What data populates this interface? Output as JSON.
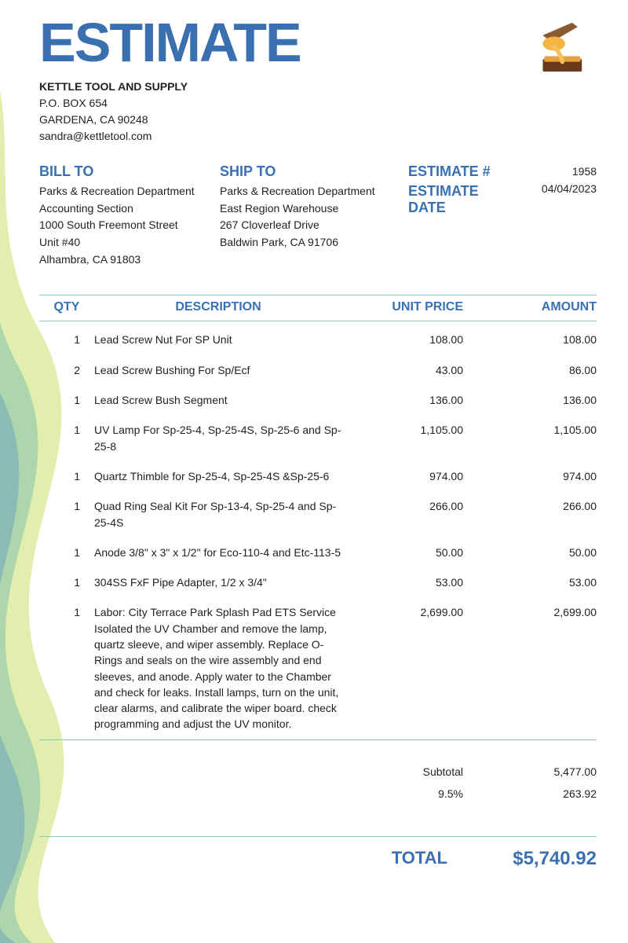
{
  "colors": {
    "accent": "#3a70b0",
    "rule": "#8fc7b6",
    "text": "#222222",
    "wave_green": "#c9e06a",
    "wave_teal": "#6fb7ae",
    "wave_blue": "#4f87c3"
  },
  "doc": {
    "title": "ESTIMATE",
    "company_name": "KETTLE TOOL AND SUPPLY",
    "company_addr1": "P.O. BOX 654",
    "company_addr2": "GARDENA, CA 90248",
    "company_email": "sandra@kettletool.com"
  },
  "billto": {
    "heading": "BILL TO",
    "line1": "Parks & Recreation Department",
    "line2": "Accounting Section",
    "line3": "1000 South Freemont Street",
    "line4": "Unit #40",
    "line5": "Alhambra, CA 91803"
  },
  "shipto": {
    "heading": "SHIP TO",
    "line1": "Parks & Recreation Department",
    "line2": "East Region Warehouse",
    "line3": "267 Cloverleaf Drive",
    "line4": "Baldwin Park, CA 91706"
  },
  "meta": {
    "estimate_num_label": "ESTIMATE #",
    "estimate_num": "1958",
    "estimate_date_label": "ESTIMATE DATE",
    "estimate_date": "04/04/2023"
  },
  "columns": {
    "qty": "QTY",
    "desc": "DESCRIPTION",
    "price": "UNIT PRICE",
    "amount": "AMOUNT"
  },
  "items": [
    {
      "qty": "1",
      "desc": "Lead Screw Nut For SP Unit",
      "price": "108.00",
      "amount": "108.00"
    },
    {
      "qty": "2",
      "desc": "Lead Screw Bushing For Sp/Ecf",
      "price": "43.00",
      "amount": "86.00"
    },
    {
      "qty": "1",
      "desc": "Lead Screw Bush Segment",
      "price": "136.00",
      "amount": "136.00"
    },
    {
      "qty": "1",
      "desc": "UV Lamp For Sp-25-4, Sp-25-4S, Sp-25-6 and Sp-25-8",
      "price": "1,105.00",
      "amount": "1,105.00"
    },
    {
      "qty": "1",
      "desc": "Quartz Thimble for Sp-25-4, Sp-25-4S &Sp-25-6",
      "price": "974.00",
      "amount": "974.00"
    },
    {
      "qty": "1",
      "desc": "Quad Ring Seal Kit For Sp-13-4, Sp-25-4 and Sp-25-4S",
      "price": "266.00",
      "amount": "266.00"
    },
    {
      "qty": "1",
      "desc": "Anode 3/8\" x 3\" x 1/2\" for Eco-110-4 and Etc-113-5",
      "price": "50.00",
      "amount": "50.00"
    },
    {
      "qty": "1",
      "desc": "304SS FxF Pipe Adapter, 1/2 x 3/4\"",
      "price": "53.00",
      "amount": "53.00"
    },
    {
      "qty": "1",
      "desc": "Labor: City Terrace Park Splash Pad ETS Service Isolated the UV Chamber and remove the lamp, quartz sleeve, and wiper assembly. Replace O-Rings and seals on the wire assembly and end sleeves, and anode. Apply water to the Chamber and check for leaks. Install lamps, turn on the unit, clear alarms, and calibrate the wiper board. check programming and adjust the UV monitor.",
      "price": "2,699.00",
      "amount": "2,699.00"
    }
  ],
  "totals": {
    "subtotal_label": "Subtotal",
    "subtotal": "5,477.00",
    "tax_label": "9.5%",
    "tax": "263.92",
    "grand_label": "TOTAL",
    "grand": "$5,740.92"
  }
}
